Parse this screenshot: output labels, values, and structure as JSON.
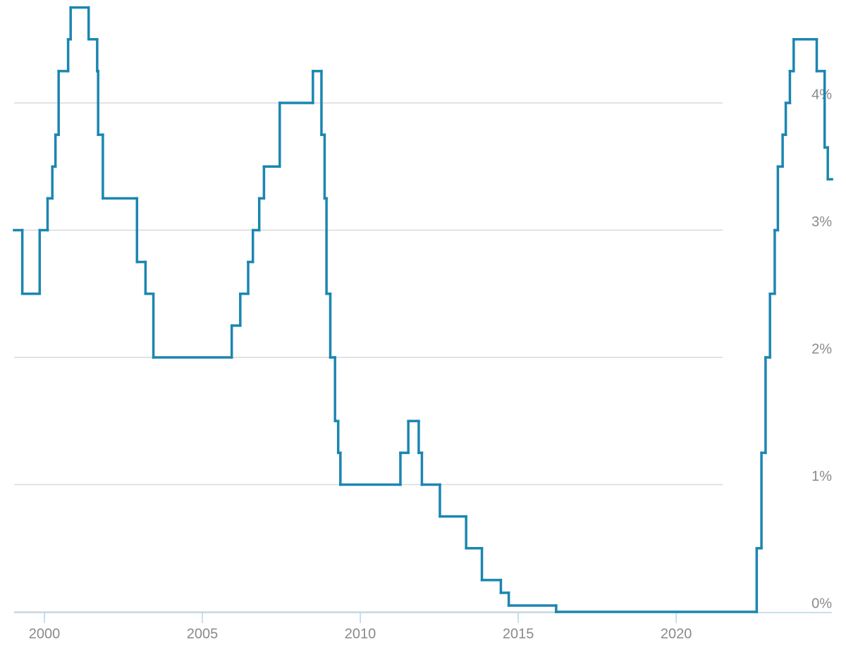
{
  "chart_data": {
    "type": "step",
    "color": "#1b86b1",
    "grid": true,
    "x": [
      1999.04,
      1999.3,
      1999.85,
      2000.1,
      2000.25,
      2000.35,
      2000.45,
      2000.75,
      2000.83,
      2001.4,
      2001.67,
      2001.7,
      2001.85,
      2002.93,
      2003.2,
      2003.45,
      2005.93,
      2006.2,
      2006.45,
      2006.6,
      2006.8,
      2006.95,
      2007.45,
      2008.5,
      2008.77,
      2008.87,
      2008.93,
      2009.05,
      2009.2,
      2009.3,
      2009.37,
      2011.27,
      2011.52,
      2011.85,
      2011.95,
      2012.52,
      2013.35,
      2013.85,
      2014.45,
      2014.7,
      2016.2,
      2022.55,
      2022.7,
      2022.83,
      2022.97,
      2023.12,
      2023.22,
      2023.37,
      2023.47,
      2023.6,
      2023.72,
      2024.45,
      2024.7,
      2024.8
    ],
    "values": [
      3.0,
      2.5,
      3.0,
      3.25,
      3.5,
      3.75,
      4.25,
      4.5,
      4.75,
      4.5,
      4.25,
      3.75,
      3.25,
      2.75,
      2.5,
      2.0,
      2.25,
      2.5,
      2.75,
      3.0,
      3.25,
      3.5,
      4.0,
      4.25,
      3.75,
      3.25,
      2.5,
      2.0,
      1.5,
      1.25,
      1.0,
      1.25,
      1.5,
      1.25,
      1.0,
      0.75,
      0.5,
      0.25,
      0.15,
      0.05,
      0.0,
      0.5,
      1.25,
      2.0,
      2.5,
      3.0,
      3.5,
      3.75,
      4.0,
      4.25,
      4.5,
      4.25,
      3.65,
      3.4
    ],
    "xlim": [
      1999.04,
      2024.93
    ],
    "xticks": [
      2000,
      2005,
      2010,
      2015,
      2020
    ],
    "ylim": [
      0,
      4.8
    ],
    "yticks": [
      {
        "value": 0,
        "label": "0%"
      },
      {
        "value": 1,
        "label": "1%"
      },
      {
        "value": 2,
        "label": "2%"
      },
      {
        "value": 3,
        "label": "3%"
      },
      {
        "value": 4,
        "label": "4%"
      }
    ]
  }
}
